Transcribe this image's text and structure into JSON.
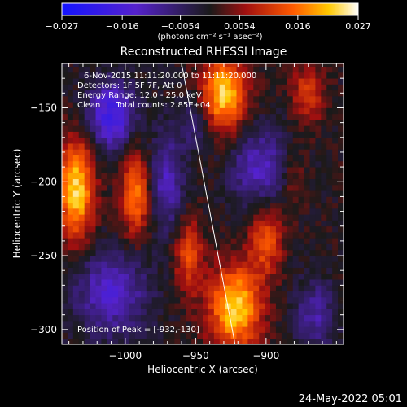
{
  "chart_data": {
    "type": "heatmap",
    "title": "Reconstructed RHESSI Image",
    "xlabel": "Heliocentric X (arcsec)",
    "ylabel": "Heliocentric Y (arcsec)",
    "xlim": [
      -1045,
      -845
    ],
    "ylim": [
      -310,
      -120
    ],
    "x_ticks": [
      -1000,
      -950,
      -900
    ],
    "y_ticks": [
      -300,
      -250,
      -200,
      -150
    ],
    "x_tick_labels": [
      "−1000",
      "−950",
      "−900"
    ],
    "y_tick_labels": [
      "−300",
      "−250",
      "−200",
      "−150"
    ],
    "colorbar": {
      "min": -0.027,
      "max": 0.027,
      "tick_values": [
        -0.027,
        -0.016,
        -0.0054,
        0.0054,
        0.016,
        0.027
      ],
      "tick_labels": [
        "−0.027",
        "−0.016",
        "−0.0054",
        "0.0054",
        "0.016",
        "0.027"
      ],
      "units_line": "(photons cm⁻² s⁻¹ asec⁻²)"
    },
    "annotations": [
      "6-Nov-2015 11:11:20.000 to 11:11:20.000",
      "Detectors: 1F 5F 7F, Att 0",
      "Energy Range: 12.0 - 25.0 keV",
      "Clean      Total counts: 2.85E+04"
    ],
    "peak_label": "Position of Peak = [-932,-130]",
    "peak": [
      -932,
      -130
    ],
    "limb_line": [
      [
        -960,
        -120
      ],
      [
        -922,
        -310
      ]
    ],
    "blobs": [
      {
        "x": -1035,
        "y": -205,
        "amp": 1.0,
        "sx": 9,
        "sy": 24
      },
      {
        "x": -993,
        "y": -208,
        "amp": 0.75,
        "sx": 7,
        "sy": 20
      },
      {
        "x": -955,
        "y": -250,
        "amp": 0.55,
        "sx": 7,
        "sy": 18
      },
      {
        "x": -922,
        "y": -285,
        "amp": 1.0,
        "sx": 13,
        "sy": 20
      },
      {
        "x": -900,
        "y": -240,
        "amp": 0.6,
        "sx": 8,
        "sy": 16
      },
      {
        "x": -930,
        "y": -140,
        "amp": 1.0,
        "sx": 11,
        "sy": 18
      },
      {
        "x": -870,
        "y": -140,
        "amp": 0.5,
        "sx": 8,
        "sy": 14
      },
      {
        "x": -1010,
        "y": -155,
        "amp": -0.8,
        "sx": 12,
        "sy": 16
      },
      {
        "x": -970,
        "y": -200,
        "amp": -0.55,
        "sx": 8,
        "sy": 22
      },
      {
        "x": -905,
        "y": -190,
        "amp": -0.55,
        "sx": 14,
        "sy": 18
      },
      {
        "x": -1010,
        "y": -275,
        "amp": -0.6,
        "sx": 18,
        "sy": 20
      },
      {
        "x": -865,
        "y": -290,
        "amp": -0.45,
        "sx": 10,
        "sy": 16
      },
      {
        "x": -950,
        "y": -160,
        "amp": -0.35,
        "sx": 8,
        "sy": 12
      },
      {
        "x": -880,
        "y": -200,
        "amp": 0.25,
        "sx": 6,
        "sy": 14
      }
    ]
  },
  "footer": {
    "date": "24-May-2022 05:01"
  }
}
